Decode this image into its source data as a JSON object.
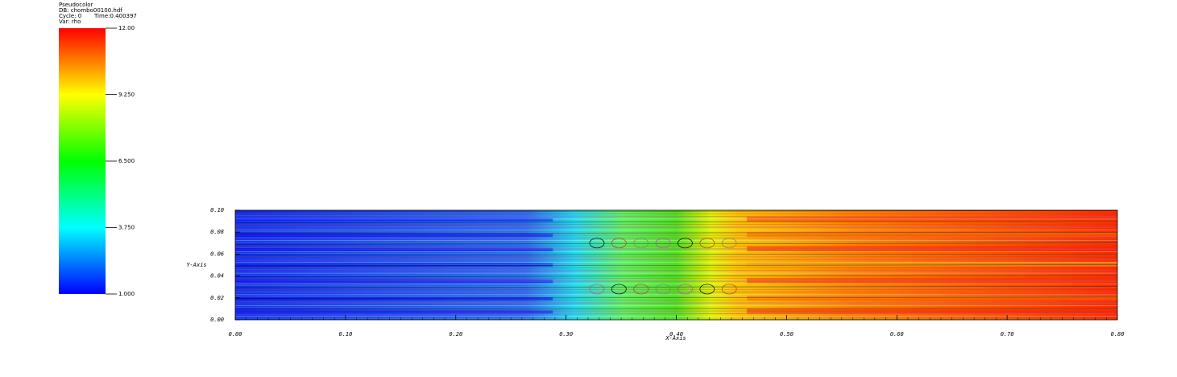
{
  "chart_data": {
    "type": "pseudocolor",
    "legend": {
      "title": "Pseudocolor",
      "db": "DB: chombo00100.hdf",
      "cycle": "Cycle: 0",
      "time": "Time:0.400397",
      "var": "Var: rho",
      "range": [
        1,
        12
      ],
      "ticks": [
        {
          "value": 12,
          "label": "12.00"
        },
        {
          "value": 9.25,
          "label": "9.250"
        },
        {
          "value": 6.5,
          "label": "6.500"
        },
        {
          "value": 3.75,
          "label": "3.750"
        },
        {
          "value": 1,
          "label": "1.000"
        }
      ]
    },
    "x_label": "X-Axis",
    "y_label": "Y-Axis",
    "xlim": [
      0,
      0.8
    ],
    "ylim": [
      0,
      0.1
    ],
    "xticks": [
      {
        "value": 0,
        "label": "0.00"
      },
      {
        "value": 0.1,
        "label": "0.10"
      },
      {
        "value": 0.2,
        "label": "0.20"
      },
      {
        "value": 0.3,
        "label": "0.30"
      },
      {
        "value": 0.4,
        "label": "0.40"
      },
      {
        "value": 0.5,
        "label": "0.50"
      },
      {
        "value": 0.6,
        "label": "0.60"
      },
      {
        "value": 0.7,
        "label": "0.70"
      },
      {
        "value": 0.8,
        "label": "0.80"
      }
    ],
    "yticks": [
      {
        "value": 0,
        "label": "0.00"
      },
      {
        "value": 0.02,
        "label": "0.02"
      },
      {
        "value": 0.04,
        "label": "0.04"
      },
      {
        "value": 0.06,
        "label": "0.06"
      },
      {
        "value": 0.08,
        "label": "0.08"
      },
      {
        "value": 0.1,
        "label": "0.10"
      }
    ]
  }
}
